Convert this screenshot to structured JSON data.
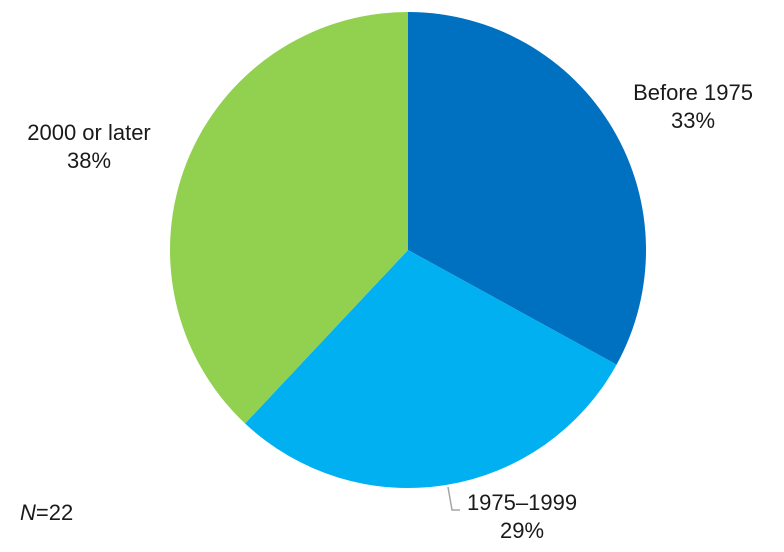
{
  "chart_data": {
    "type": "pie",
    "title": "",
    "legend": "none",
    "slices": [
      {
        "label": "Before 1975",
        "value": 33,
        "value_label": "33%",
        "color": "#0070C0"
      },
      {
        "label": "1975–1999",
        "value": 29,
        "value_label": "29%",
        "color": "#00B0F0"
      },
      {
        "label": "2000 or later",
        "value": 38,
        "value_label": "38%",
        "color": "#92D050"
      }
    ],
    "start": "12 o'clock",
    "direction": "clockwise"
  },
  "note": {
    "n_symbol": "N",
    "n_rest": "=22"
  }
}
